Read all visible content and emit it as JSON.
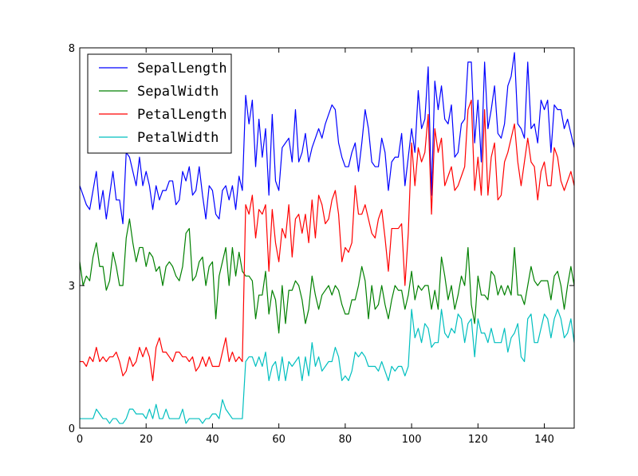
{
  "chart_data": {
    "type": "line",
    "xlim": [
      0,
      149
    ],
    "ylim": [
      0,
      8
    ],
    "xticks": [
      "0",
      "20",
      "40",
      "60",
      "80",
      "100",
      "120",
      "140"
    ],
    "xtick_values": [
      0,
      20,
      40,
      60,
      80,
      100,
      120,
      140
    ],
    "yticks": [
      "0",
      "3",
      "8"
    ],
    "ytick_values": [
      0,
      3,
      8
    ],
    "grid": false,
    "legend_position": "top-left",
    "series": [
      {
        "name": "SepalLength",
        "color": "#0000ff",
        "values": [
          5.1,
          4.9,
          4.7,
          4.6,
          5.0,
          5.4,
          4.6,
          5.0,
          4.4,
          4.9,
          5.4,
          4.8,
          4.8,
          4.3,
          5.8,
          5.7,
          5.4,
          5.1,
          5.7,
          5.1,
          5.4,
          5.1,
          4.6,
          5.1,
          4.8,
          5.0,
          5.0,
          5.2,
          5.2,
          4.7,
          4.8,
          5.4,
          5.2,
          5.5,
          4.9,
          5.0,
          5.5,
          4.9,
          4.4,
          5.1,
          5.0,
          4.5,
          4.4,
          5.0,
          5.1,
          4.8,
          5.1,
          4.6,
          5.3,
          5.0,
          7.0,
          6.4,
          6.9,
          5.5,
          6.5,
          5.7,
          6.3,
          4.9,
          6.6,
          5.2,
          5.0,
          5.9,
          6.0,
          6.1,
          5.6,
          6.7,
          5.6,
          5.8,
          6.2,
          5.6,
          5.9,
          6.1,
          6.3,
          6.1,
          6.4,
          6.6,
          6.8,
          6.7,
          6.0,
          5.7,
          5.5,
          5.5,
          5.8,
          6.0,
          5.4,
          6.0,
          6.7,
          6.3,
          5.6,
          5.5,
          5.5,
          6.1,
          5.8,
          5.0,
          5.6,
          5.7,
          5.7,
          6.2,
          5.1,
          5.7,
          6.3,
          5.8,
          7.1,
          6.3,
          6.5,
          7.6,
          4.9,
          7.3,
          6.7,
          7.2,
          6.5,
          6.4,
          6.8,
          5.7,
          5.8,
          6.4,
          6.5,
          7.7,
          7.7,
          6.0,
          6.9,
          5.6,
          7.7,
          6.3,
          6.7,
          7.2,
          6.2,
          6.1,
          6.4,
          7.2,
          7.4,
          7.9,
          6.4,
          6.3,
          6.1,
          7.7,
          6.3,
          6.4,
          6.0,
          6.9,
          6.7,
          6.9,
          5.8,
          6.8,
          6.7,
          6.7,
          6.3,
          6.5,
          6.2,
          5.9
        ]
      },
      {
        "name": "SepalWidth",
        "color": "#008000",
        "values": [
          3.5,
          3.0,
          3.2,
          3.1,
          3.6,
          3.9,
          3.4,
          3.4,
          2.9,
          3.1,
          3.7,
          3.4,
          3.0,
          3.0,
          4.0,
          4.4,
          3.9,
          3.5,
          3.8,
          3.8,
          3.4,
          3.7,
          3.6,
          3.3,
          3.4,
          3.0,
          3.4,
          3.5,
          3.4,
          3.2,
          3.1,
          3.4,
          4.1,
          4.2,
          3.1,
          3.2,
          3.5,
          3.6,
          3.0,
          3.4,
          3.5,
          2.3,
          3.2,
          3.5,
          3.8,
          3.0,
          3.8,
          3.2,
          3.7,
          3.3,
          3.2,
          3.2,
          3.1,
          2.3,
          2.8,
          2.8,
          3.3,
          2.4,
          2.9,
          2.7,
          2.0,
          3.0,
          2.2,
          2.9,
          2.9,
          3.1,
          3.0,
          2.7,
          2.2,
          2.5,
          3.2,
          2.8,
          2.5,
          2.8,
          2.9,
          3.0,
          2.8,
          3.0,
          2.9,
          2.6,
          2.4,
          2.4,
          2.7,
          2.7,
          3.0,
          3.4,
          3.1,
          2.3,
          3.0,
          2.5,
          2.6,
          3.0,
          2.6,
          2.3,
          2.7,
          3.0,
          2.9,
          2.9,
          2.5,
          2.8,
          3.3,
          2.7,
          3.0,
          2.9,
          3.0,
          3.0,
          2.5,
          2.9,
          2.5,
          3.6,
          3.2,
          2.7,
          3.0,
          2.5,
          2.8,
          3.2,
          3.0,
          3.8,
          2.6,
          2.2,
          3.2,
          2.8,
          2.8,
          2.7,
          3.3,
          3.2,
          2.8,
          3.0,
          2.8,
          3.0,
          2.8,
          3.8,
          2.8,
          2.8,
          2.6,
          3.0,
          3.4,
          3.1,
          3.0,
          3.1,
          3.1,
          3.1,
          2.7,
          3.2,
          3.3,
          3.0,
          2.5,
          3.0,
          3.4,
          3.0
        ]
      },
      {
        "name": "PetalLength",
        "color": "#ff0000",
        "values": [
          1.4,
          1.4,
          1.3,
          1.5,
          1.4,
          1.7,
          1.4,
          1.5,
          1.4,
          1.5,
          1.5,
          1.6,
          1.4,
          1.1,
          1.2,
          1.5,
          1.3,
          1.4,
          1.7,
          1.5,
          1.7,
          1.5,
          1.0,
          1.7,
          1.9,
          1.6,
          1.6,
          1.5,
          1.4,
          1.6,
          1.6,
          1.5,
          1.5,
          1.4,
          1.5,
          1.2,
          1.3,
          1.5,
          1.3,
          1.5,
          1.3,
          1.3,
          1.3,
          1.6,
          1.9,
          1.4,
          1.6,
          1.4,
          1.5,
          1.4,
          4.7,
          4.5,
          4.9,
          4.0,
          4.6,
          4.5,
          4.7,
          3.3,
          4.6,
          3.9,
          3.5,
          4.2,
          4.0,
          4.7,
          3.6,
          4.4,
          4.5,
          4.1,
          4.5,
          3.9,
          4.8,
          4.0,
          4.9,
          4.7,
          4.3,
          4.4,
          4.8,
          5.0,
          4.5,
          3.5,
          3.8,
          3.7,
          3.9,
          5.1,
          4.5,
          4.5,
          4.7,
          4.4,
          4.1,
          4.0,
          4.4,
          4.6,
          4.0,
          3.3,
          4.2,
          4.2,
          4.2,
          4.3,
          3.0,
          4.1,
          6.0,
          5.1,
          5.9,
          5.6,
          5.8,
          6.6,
          4.5,
          6.3,
          5.8,
          6.1,
          5.1,
          5.3,
          5.5,
          5.0,
          5.1,
          5.3,
          5.5,
          6.7,
          6.9,
          5.0,
          5.7,
          4.9,
          6.7,
          4.9,
          5.7,
          6.0,
          4.8,
          4.9,
          5.6,
          5.8,
          6.1,
          6.4,
          5.6,
          5.1,
          5.6,
          6.1,
          5.6,
          5.5,
          4.8,
          5.4,
          5.6,
          5.1,
          5.1,
          5.9,
          5.7,
          5.2,
          5.0,
          5.2,
          5.4,
          5.1
        ]
      },
      {
        "name": "PetalWidth",
        "color": "#00bfbf",
        "values": [
          0.2,
          0.2,
          0.2,
          0.2,
          0.2,
          0.4,
          0.3,
          0.2,
          0.2,
          0.1,
          0.2,
          0.2,
          0.1,
          0.1,
          0.2,
          0.4,
          0.4,
          0.3,
          0.3,
          0.3,
          0.2,
          0.4,
          0.2,
          0.5,
          0.2,
          0.2,
          0.4,
          0.2,
          0.2,
          0.2,
          0.2,
          0.4,
          0.1,
          0.2,
          0.2,
          0.2,
          0.2,
          0.1,
          0.2,
          0.2,
          0.3,
          0.3,
          0.2,
          0.6,
          0.4,
          0.3,
          0.2,
          0.2,
          0.2,
          0.2,
          1.4,
          1.5,
          1.5,
          1.3,
          1.5,
          1.3,
          1.6,
          1.0,
          1.3,
          1.4,
          1.0,
          1.5,
          1.0,
          1.4,
          1.3,
          1.4,
          1.5,
          1.0,
          1.5,
          1.1,
          1.8,
          1.3,
          1.5,
          1.2,
          1.3,
          1.4,
          1.4,
          1.7,
          1.5,
          1.0,
          1.1,
          1.0,
          1.2,
          1.6,
          1.5,
          1.6,
          1.5,
          1.3,
          1.3,
          1.3,
          1.2,
          1.4,
          1.2,
          1.0,
          1.3,
          1.2,
          1.3,
          1.3,
          1.1,
          1.3,
          2.5,
          1.9,
          2.1,
          1.8,
          2.2,
          2.1,
          1.7,
          1.8,
          1.8,
          2.5,
          2.0,
          1.9,
          2.1,
          2.0,
          2.4,
          2.3,
          1.8,
          2.2,
          2.3,
          1.5,
          2.3,
          2.0,
          2.0,
          1.8,
          2.1,
          1.8,
          1.8,
          1.8,
          2.1,
          1.6,
          1.9,
          2.0,
          2.2,
          1.5,
          1.4,
          2.3,
          2.4,
          1.8,
          1.8,
          2.1,
          2.4,
          2.3,
          1.9,
          2.3,
          2.5,
          2.3,
          1.9,
          2.0,
          2.3,
          1.8
        ]
      }
    ]
  }
}
